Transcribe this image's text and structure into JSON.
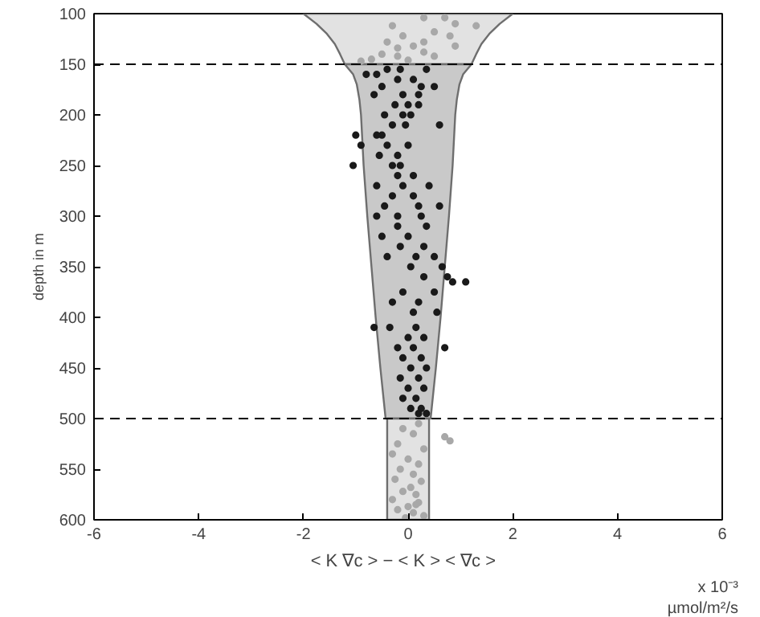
{
  "chart_data": {
    "type": "scatter",
    "xlabel": "< K ∇c >  −  < K > < ∇c >",
    "ylabel": "depth in m",
    "annotations": [
      "x 10⁻³",
      "µmol/m²/s"
    ],
    "xlim": [
      -6,
      6
    ],
    "ylim": [
      600,
      100
    ],
    "xticks": [
      -6,
      -4,
      -2,
      0,
      2,
      4,
      6
    ],
    "yticks": [
      100,
      150,
      200,
      250,
      300,
      350,
      400,
      450,
      500,
      550,
      600
    ],
    "marker": "circle",
    "ref_lines": [
      {
        "axis": "y",
        "value": 150,
        "line_style": "dashed",
        "color": "#000000"
      },
      {
        "axis": "y",
        "value": 500,
        "line_style": "dashed",
        "color": "#000000"
      }
    ],
    "series": [
      {
        "type": "area",
        "marker": "none",
        "color": "#e2e2e2",
        "x": [
          -2.0,
          -1.75,
          -1.55,
          -1.4,
          -1.3,
          -1.21,
          1.21,
          1.3,
          1.4,
          1.55,
          1.75,
          2.0
        ],
        "values": [
          100,
          110,
          120,
          130,
          140,
          150,
          150,
          140,
          130,
          120,
          110,
          100
        ]
      },
      {
        "type": "area",
        "marker": "none",
        "color": "#c9c9c9",
        "x": [
          -1.21,
          -1.05,
          -0.98,
          -0.93,
          -0.9,
          -0.85,
          -0.78,
          -0.7,
          -0.62,
          -0.53,
          -0.43,
          0.43,
          0.53,
          0.62,
          0.7,
          0.78,
          0.85,
          0.9,
          0.93,
          0.98,
          1.05,
          1.21
        ],
        "values": [
          150,
          160,
          170,
          185,
          200,
          250,
          300,
          350,
          400,
          450,
          500,
          500,
          450,
          400,
          350,
          300,
          250,
          200,
          185,
          170,
          160,
          150
        ]
      },
      {
        "type": "area",
        "marker": "none",
        "color": "#e2e2e2",
        "x": [
          -0.4,
          -0.4,
          0.4,
          0.4
        ],
        "values": [
          500,
          600,
          600,
          500
        ]
      },
      {
        "color": "#a8a8a8",
        "x": [
          0.3,
          0.7,
          0.9,
          1.3,
          -0.3,
          0.5,
          -0.1,
          0.8,
          -0.4,
          0.3,
          0.1,
          -0.2,
          0.9,
          0.3,
          -0.5,
          -0.2,
          0.5,
          -0.7,
          -0.9,
          0.0
        ],
        "values": [
          104,
          104,
          110,
          112,
          112,
          118,
          122,
          122,
          128,
          128,
          132,
          134,
          132,
          138,
          140,
          142,
          142,
          145,
          147,
          146
        ]
      },
      {
        "color": "#1a1a1a",
        "x": [
          -0.4,
          -0.15,
          0.35,
          -0.6,
          -0.8,
          -0.2,
          0.1,
          -0.5,
          0.25,
          0.5,
          -0.65,
          -0.1,
          0.2,
          -0.25,
          0.0,
          0.2,
          -0.45,
          0.05,
          -0.1,
          -0.3,
          -0.05,
          0.6,
          -1.0,
          -0.5,
          -0.6,
          -0.9,
          -0.4,
          0.0,
          -0.55,
          -0.2,
          -1.05,
          -0.3,
          -0.15,
          -0.2,
          0.1,
          -0.6,
          -0.1,
          0.4,
          -0.3,
          0.1,
          -0.45,
          0.2,
          0.6,
          -0.6,
          -0.2,
          0.25,
          -0.2,
          0.35,
          -0.5,
          0.0,
          -0.15,
          0.3,
          -0.4,
          0.15,
          0.5,
          0.05,
          0.65,
          0.3,
          0.75,
          1.1,
          0.85,
          -0.1,
          0.5,
          -0.3,
          0.2,
          0.1,
          0.55,
          -0.35,
          -0.65,
          0.15,
          0.0,
          0.3,
          -0.2,
          0.1,
          0.7,
          -0.1,
          0.25,
          0.05,
          0.35,
          -0.15,
          0.2,
          0.0,
          0.3,
          -0.1,
          0.15,
          0.05,
          0.25,
          0.2,
          0.35
        ],
        "values": [
          155,
          155,
          155,
          160,
          160,
          165,
          165,
          172,
          172,
          172,
          180,
          180,
          180,
          190,
          190,
          190,
          200,
          200,
          200,
          210,
          210,
          210,
          220,
          220,
          220,
          230,
          230,
          230,
          240,
          240,
          250,
          250,
          250,
          260,
          260,
          270,
          270,
          270,
          280,
          280,
          290,
          290,
          290,
          300,
          300,
          300,
          310,
          310,
          320,
          320,
          330,
          330,
          340,
          340,
          340,
          350,
          350,
          360,
          360,
          365,
          365,
          375,
          375,
          385,
          385,
          395,
          395,
          410,
          410,
          410,
          420,
          420,
          430,
          430,
          430,
          440,
          440,
          450,
          450,
          460,
          460,
          470,
          470,
          480,
          480,
          490,
          490,
          495,
          495
        ]
      },
      {
        "color": "#a8a8a8",
        "x": [
          0.2,
          -0.1,
          0.1,
          0.7,
          0.8,
          -0.2,
          0.3,
          -0.3,
          0.0,
          0.2,
          -0.15,
          0.1,
          -0.25,
          0.25,
          0.05,
          -0.1,
          0.15,
          -0.3,
          0.2,
          0.0,
          -0.2,
          0.1,
          0.3,
          -0.05,
          0.15
        ],
        "values": [
          505,
          510,
          515,
          518,
          522,
          525,
          530,
          535,
          540,
          545,
          550,
          555,
          560,
          562,
          568,
          572,
          575,
          580,
          583,
          587,
          590,
          593,
          596,
          598,
          585
        ]
      }
    ]
  }
}
